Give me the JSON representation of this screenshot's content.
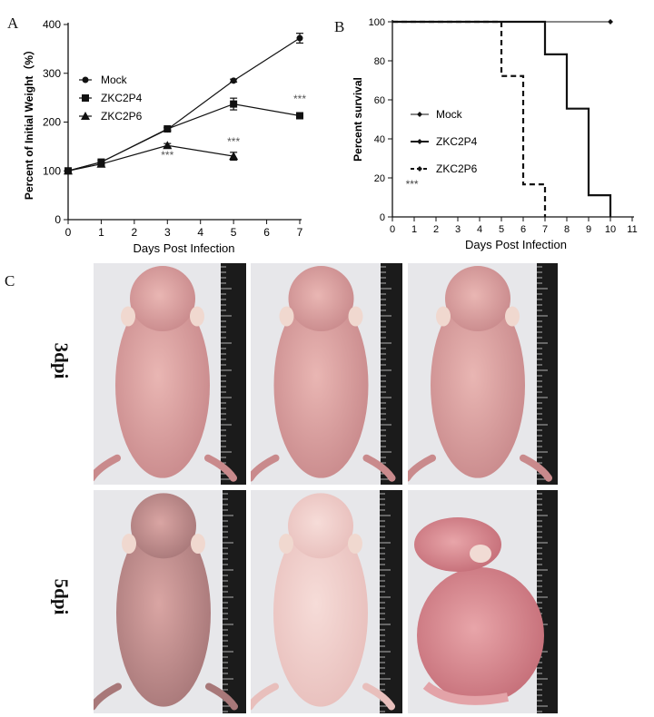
{
  "panels": {
    "a": "A",
    "b": "B",
    "c": "C"
  },
  "chart_data": [
    {
      "type": "line",
      "panel": "A",
      "xlabel": "Days Post Infection",
      "ylabel": "Percent of Initial Weight（%）",
      "xlim": [
        0,
        7
      ],
      "ylim": [
        0,
        400
      ],
      "xticks": [
        "0",
        "1",
        "2",
        "3",
        "4",
        "5",
        "6",
        "7"
      ],
      "yticks": [
        "0",
        "100",
        "200",
        "300",
        "400"
      ],
      "grid": false,
      "legend_position": "upper-left",
      "series": [
        {
          "name": "Mock",
          "marker": "circle",
          "x": [
            0,
            1,
            3,
            5,
            7
          ],
          "y": [
            100,
            118,
            185,
            285,
            372
          ],
          "err": [
            0,
            3,
            3,
            3,
            10
          ]
        },
        {
          "name": "ZKC2P4",
          "marker": "square",
          "x": [
            0,
            1,
            3,
            5,
            7
          ],
          "y": [
            100,
            118,
            186,
            237,
            213
          ],
          "err": [
            0,
            4,
            3,
            12,
            5
          ]
        },
        {
          "name": "ZKC2P6",
          "marker": "triangle",
          "x": [
            0,
            1,
            3,
            5
          ],
          "y": [
            100,
            114,
            152,
            130
          ],
          "err": [
            0,
            4,
            4,
            8
          ]
        }
      ],
      "annotations": [
        {
          "text": "***",
          "x": 7,
          "y": 240
        },
        {
          "text": "***",
          "x": 5,
          "y": 153
        },
        {
          "text": "***",
          "x": 3,
          "y": 125
        }
      ]
    },
    {
      "type": "line",
      "panel": "B",
      "xlabel": "Days Post Infection",
      "ylabel": "Percent survival",
      "xlim": [
        0,
        11
      ],
      "ylim": [
        0,
        100
      ],
      "xticks": [
        "0",
        "1",
        "2",
        "3",
        "4",
        "5",
        "6",
        "7",
        "8",
        "9",
        "10",
        "11"
      ],
      "yticks": [
        "0",
        "20",
        "40",
        "60",
        "80",
        "100"
      ],
      "grid": false,
      "legend_position": "left",
      "series": [
        {
          "name": "Mock",
          "style": "thin",
          "x": [
            0,
            10
          ],
          "y": [
            100,
            100
          ]
        },
        {
          "name": "ZKC2P4",
          "style": "thick",
          "x": [
            0,
            7,
            8,
            9,
            10
          ],
          "y": [
            100,
            83.3,
            55.5,
            11.1,
            0
          ]
        },
        {
          "name": "ZKC2P6",
          "style": "dashed",
          "x": [
            0,
            5,
            6,
            7
          ],
          "y": [
            100,
            72.2,
            16.7,
            0
          ]
        }
      ],
      "annotations": [
        {
          "text": "***",
          "x": 0.9,
          "y": 15
        }
      ]
    }
  ],
  "photos": {
    "rows": [
      "3dpi",
      "5dpi"
    ]
  }
}
